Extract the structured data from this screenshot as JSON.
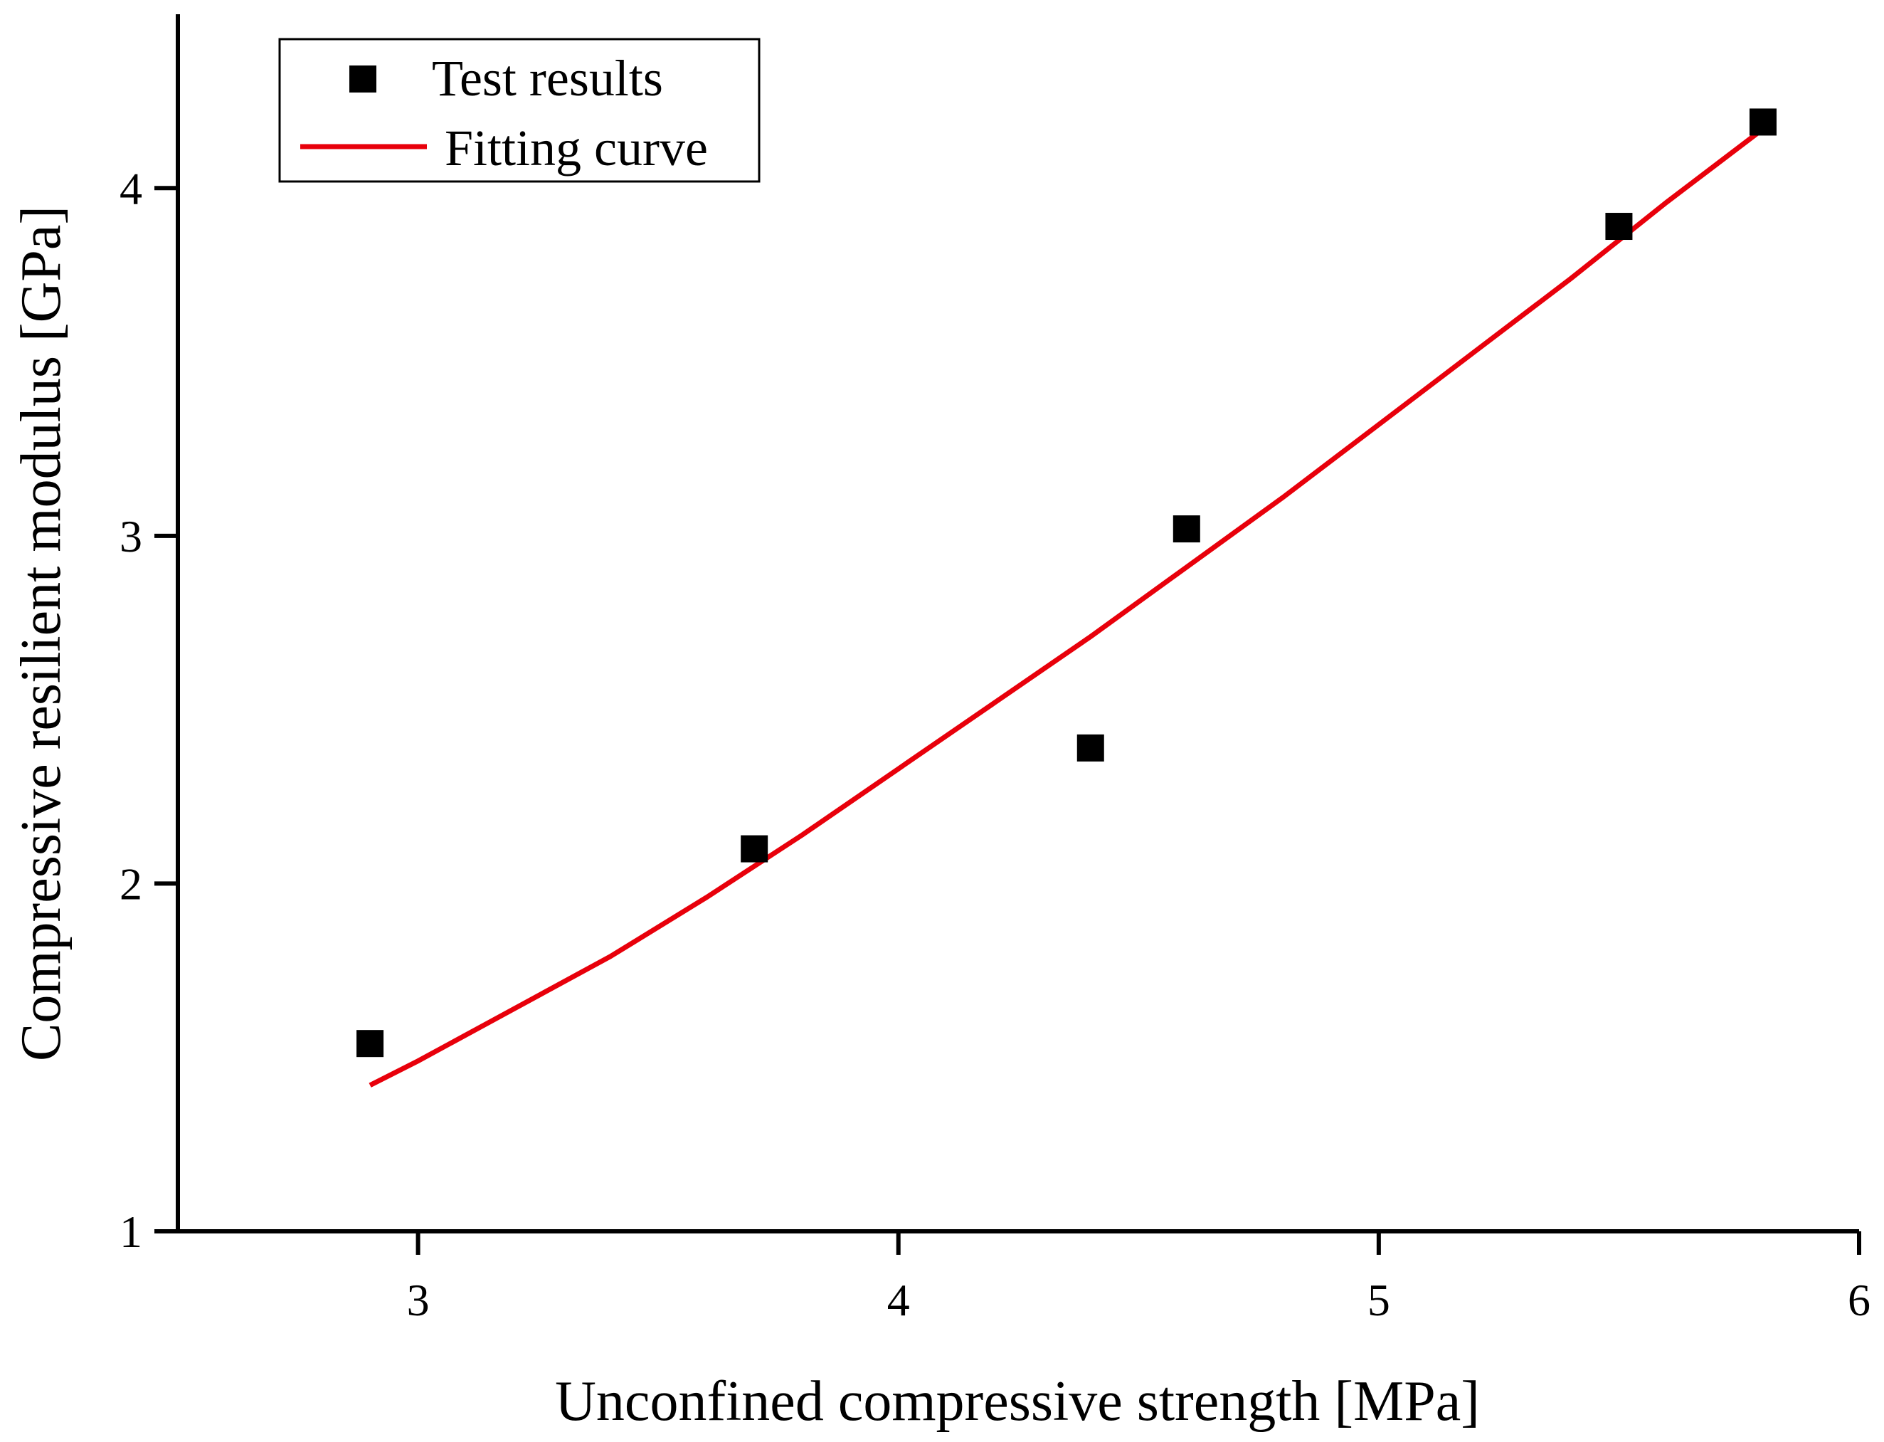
{
  "chart_data": {
    "type": "scatter",
    "xlabel": "Unconfined compressive strength  [MPa]",
    "ylabel": "Compressive resilient modulus [GPa]",
    "xlim": [
      2.5,
      6
    ],
    "ylim": [
      1,
      4.5
    ],
    "x_ticks": [
      3,
      4,
      5,
      6
    ],
    "y_ticks": [
      1,
      2,
      3,
      4
    ],
    "legend_position": "top-left",
    "series": [
      {
        "name": "Test results",
        "kind": "scatter",
        "marker": "square",
        "color": "#000000",
        "points": [
          {
            "x": 2.9,
            "y": 1.54
          },
          {
            "x": 3.7,
            "y": 2.1
          },
          {
            "x": 4.4,
            "y": 2.39
          },
          {
            "x": 4.6,
            "y": 3.02
          },
          {
            "x": 5.5,
            "y": 3.89
          },
          {
            "x": 5.8,
            "y": 4.19
          }
        ]
      },
      {
        "name": "Fitting curve",
        "kind": "line",
        "color": "#e8000b",
        "points": [
          {
            "x": 2.9,
            "y": 1.42
          },
          {
            "x": 3.0,
            "y": 1.49
          },
          {
            "x": 3.2,
            "y": 1.64
          },
          {
            "x": 3.4,
            "y": 1.79
          },
          {
            "x": 3.6,
            "y": 1.96
          },
          {
            "x": 3.8,
            "y": 2.14
          },
          {
            "x": 4.0,
            "y": 2.33
          },
          {
            "x": 4.2,
            "y": 2.52
          },
          {
            "x": 4.4,
            "y": 2.71
          },
          {
            "x": 4.6,
            "y": 2.91
          },
          {
            "x": 4.8,
            "y": 3.11
          },
          {
            "x": 5.0,
            "y": 3.32
          },
          {
            "x": 5.2,
            "y": 3.53
          },
          {
            "x": 5.4,
            "y": 3.74
          },
          {
            "x": 5.6,
            "y": 3.96
          },
          {
            "x": 5.8,
            "y": 4.17
          }
        ]
      }
    ]
  }
}
